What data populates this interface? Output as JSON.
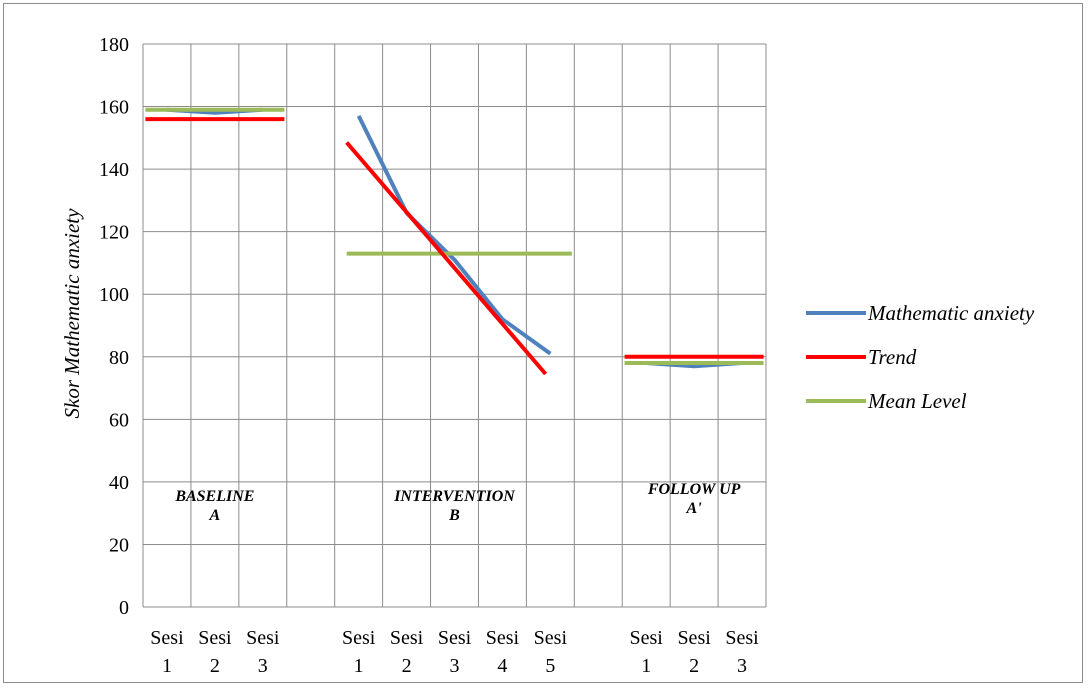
{
  "chart_data": {
    "type": "line",
    "title": "",
    "xlabel": "",
    "ylabel": "Skor Mathematic anxiety",
    "ylim": [
      0,
      180
    ],
    "yticks": [
      "0",
      "20",
      "40",
      "60",
      "80",
      "100",
      "120",
      "140",
      "160",
      "180"
    ],
    "grid": true,
    "legend_position": "right",
    "categories": [
      [
        "Sesi",
        "1"
      ],
      [
        "Sesi",
        "2"
      ],
      [
        "Sesi",
        "3"
      ],
      [
        "",
        ""
      ],
      [
        "Sesi",
        "1"
      ],
      [
        "Sesi",
        "2"
      ],
      [
        "Sesi",
        "3"
      ],
      [
        "Sesi",
        "4"
      ],
      [
        "Sesi",
        "5"
      ],
      [
        "",
        ""
      ],
      [
        "Sesi",
        "1"
      ],
      [
        "Sesi",
        "2"
      ],
      [
        "Sesi",
        "3"
      ]
    ],
    "phases": [
      {
        "line1": "BASELINE",
        "line2": "A",
        "center": 1
      },
      {
        "line1": "INTERVENTION",
        "line2": "B",
        "center": 6
      },
      {
        "line1": "FOLLOW UP",
        "line2": "A'",
        "center": 11
      }
    ],
    "series": [
      {
        "name": "Mathematic anxiety",
        "color": "#4f81bd",
        "segments": [
          [
            [
              0,
              159
            ],
            [
              1,
              158
            ],
            [
              2,
              159
            ]
          ],
          [
            [
              4,
              157
            ],
            [
              5,
              126
            ],
            [
              6,
              111
            ],
            [
              7,
              92
            ],
            [
              8,
              81
            ]
          ],
          [
            [
              10,
              78
            ],
            [
              11,
              77
            ],
            [
              12,
              78
            ]
          ]
        ]
      },
      {
        "name": "Trend",
        "color": "#ff0000",
        "segments": [
          [
            [
              -0.45,
              156
            ],
            [
              2.45,
              156
            ]
          ],
          [
            [
              3.75,
              148.5
            ],
            [
              7.9,
              74.5
            ]
          ],
          [
            [
              9.55,
              80
            ],
            [
              12.45,
              80
            ]
          ]
        ]
      },
      {
        "name": "Mean Level",
        "color": "#9bbb59",
        "segments": [
          [
            [
              -0.45,
              159
            ],
            [
              2.45,
              159
            ]
          ],
          [
            [
              3.75,
              113
            ],
            [
              8.45,
              113
            ]
          ],
          [
            [
              9.55,
              78
            ],
            [
              12.45,
              78
            ]
          ]
        ]
      }
    ]
  }
}
